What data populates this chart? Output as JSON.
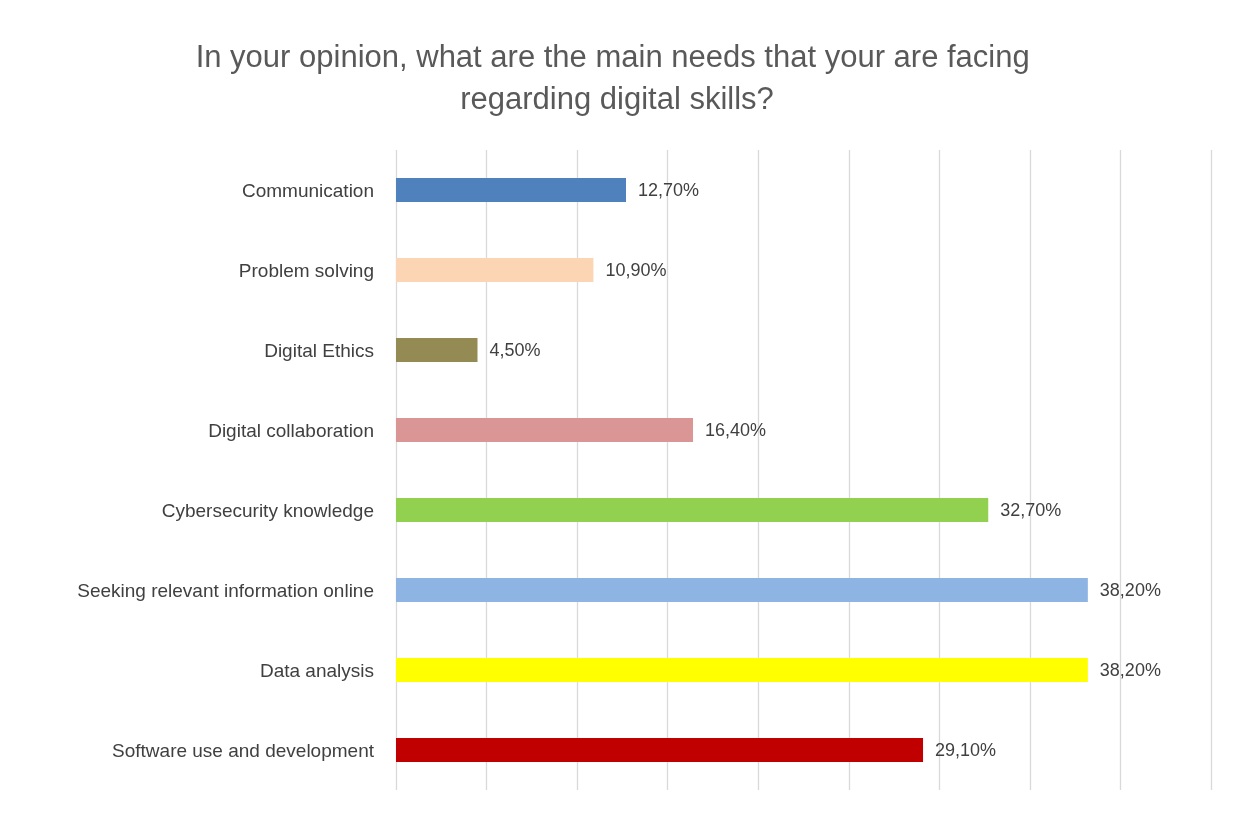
{
  "chart_data": {
    "type": "bar",
    "orientation": "horizontal",
    "title": "In your opinion, what are the main needs that your are facing regarding digital skills?",
    "categories": [
      "Communication",
      "Problem solving",
      "Digital Ethics",
      "Digital collaboration",
      "Cybersecurity knowledge",
      "Seeking relevant information online",
      "Data analysis",
      "Software use and development"
    ],
    "values": [
      12.7,
      10.9,
      4.5,
      16.4,
      32.7,
      38.2,
      38.2,
      29.1
    ],
    "value_labels": [
      "12,70%",
      "10,90%",
      "4,50%",
      "16,40%",
      "32,70%",
      "38,20%",
      "38,20%",
      "29,10%"
    ],
    "colors": [
      "#4f81bd",
      "#fcd5b5",
      "#948a54",
      "#d99694",
      "#92d050",
      "#8db4e2",
      "#ffff00",
      "#c00000"
    ],
    "xlim": [
      0,
      45
    ],
    "xticks": [
      {
        "value": 0,
        "label": null
      },
      {
        "value": 5,
        "label": null
      },
      {
        "value": 10,
        "label": null
      },
      {
        "value": 15,
        "label": null
      },
      {
        "value": 20,
        "label": null
      },
      {
        "value": 25,
        "label": null
      },
      {
        "value": 30,
        "label": null
      },
      {
        "value": 35,
        "label": null
      },
      {
        "value": 40,
        "label": null
      },
      {
        "value": 45,
        "label": null
      }
    ],
    "tick_labels": "y",
    "grid": "x"
  }
}
